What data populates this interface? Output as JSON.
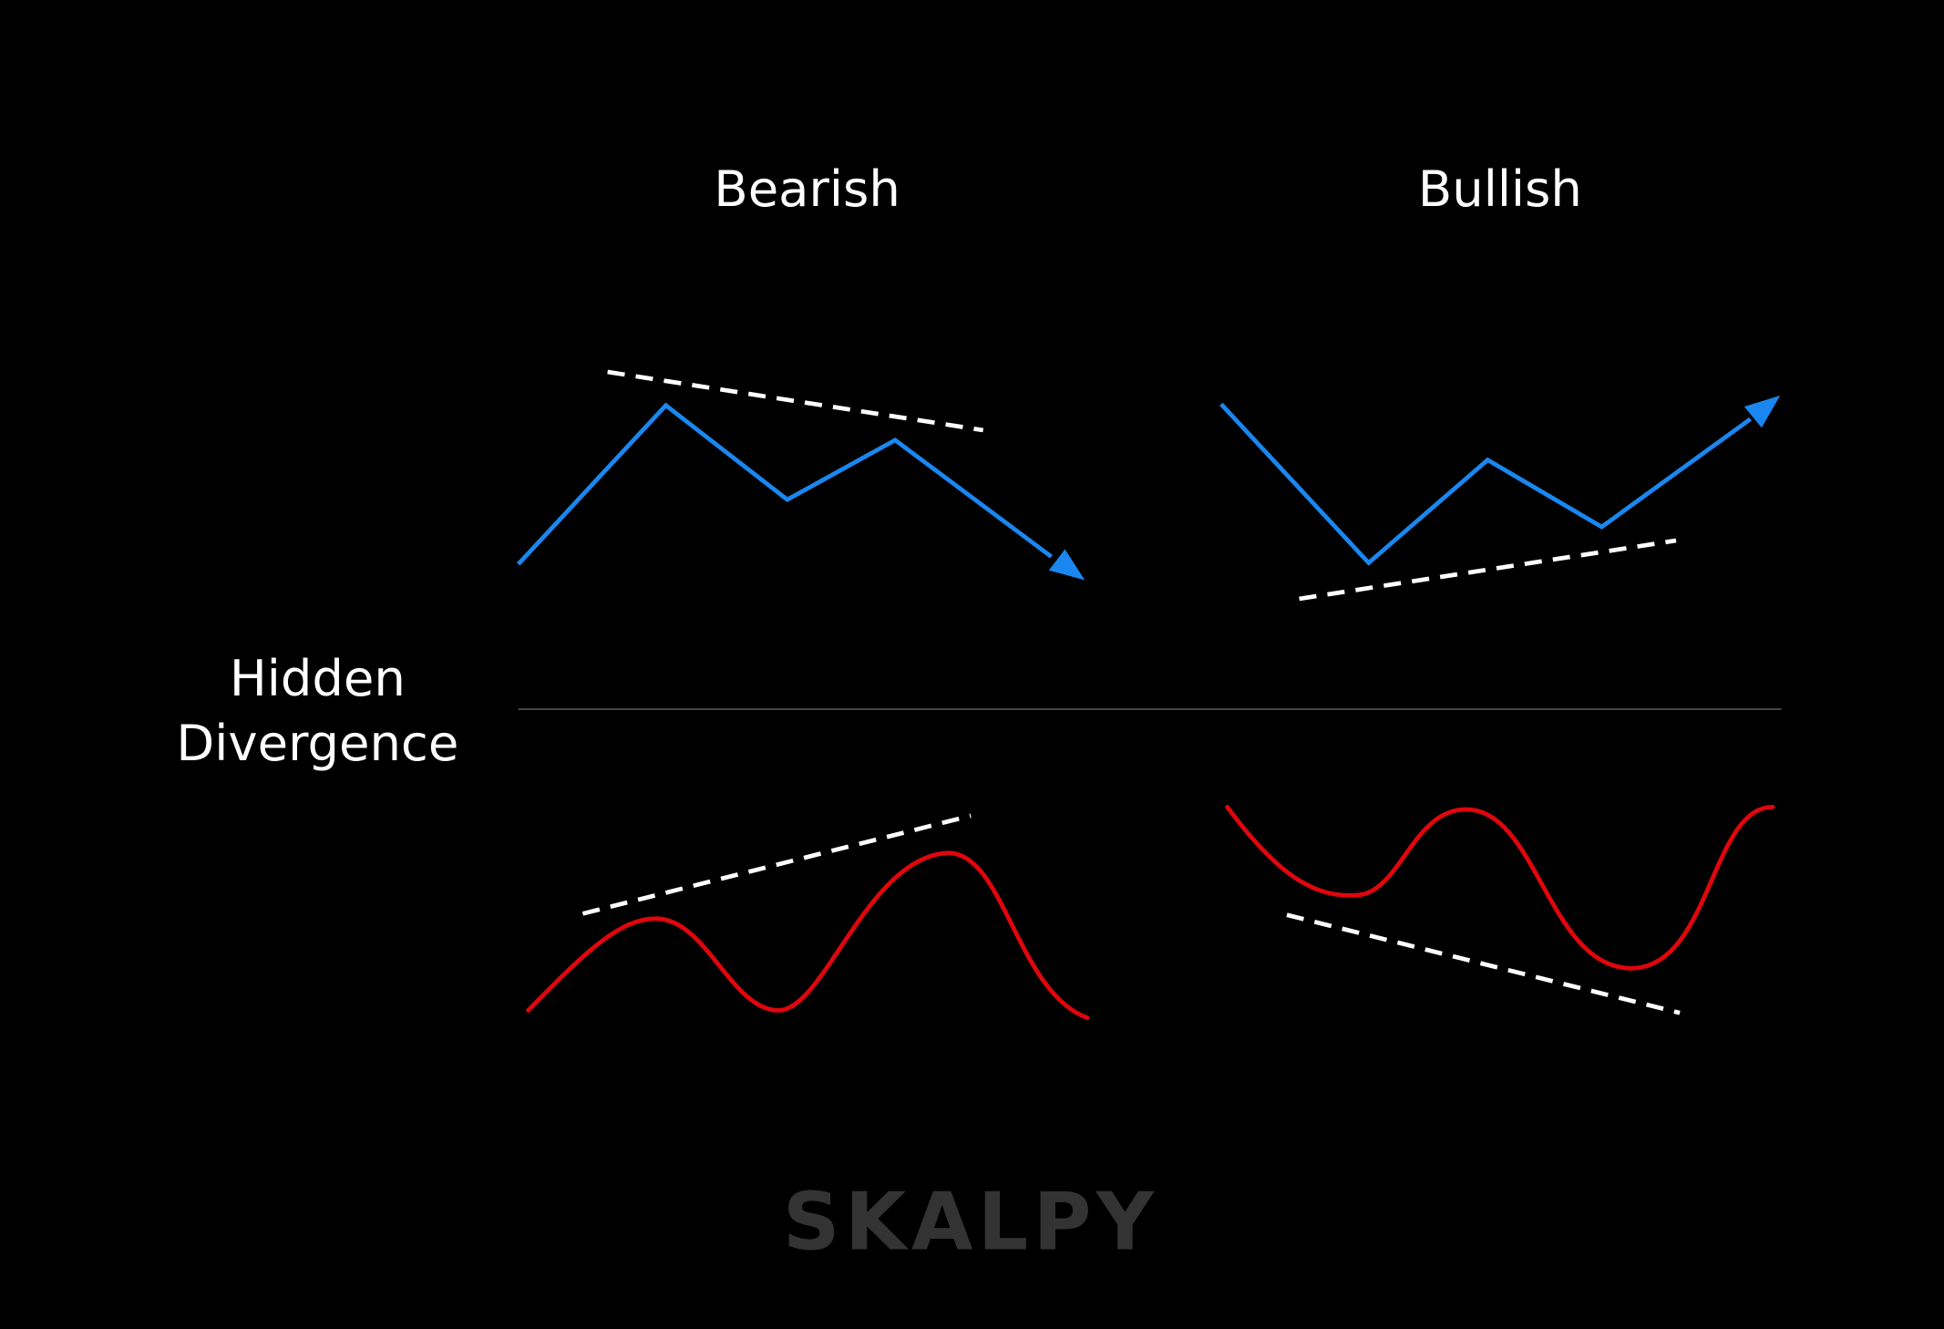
{
  "columns": [
    "Bearish",
    "Bullish"
  ],
  "row_label": [
    "Hidden",
    "Divergence"
  ],
  "watermark": "SKALPY"
}
